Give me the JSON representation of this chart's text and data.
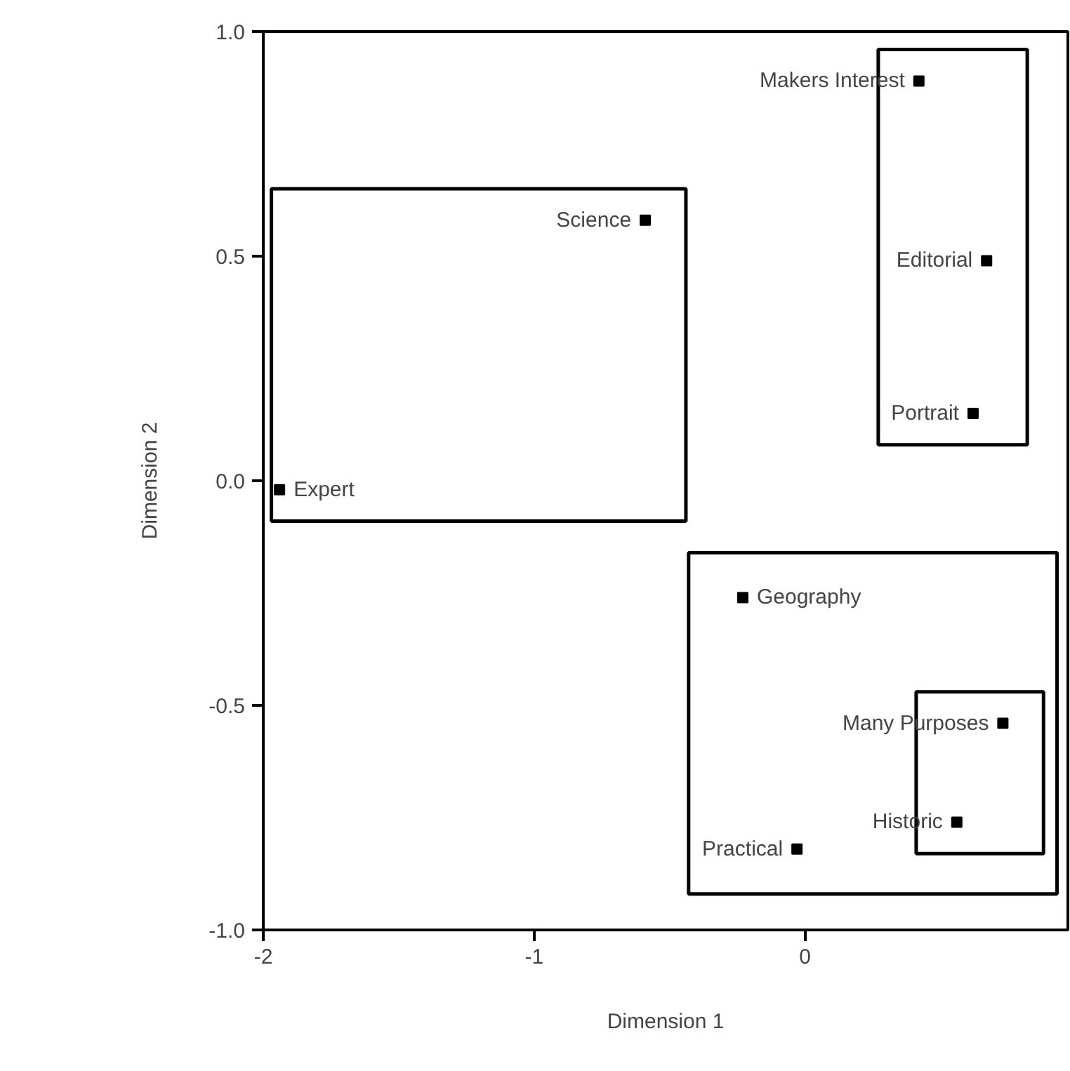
{
  "chart_data": {
    "type": "scatter",
    "xlabel": "Dimension 1",
    "ylabel": "Dimension 2",
    "xlim": [
      -2,
      0.97
    ],
    "ylim": [
      -1,
      1
    ],
    "xticks": [
      -2,
      -1,
      0
    ],
    "yticks": [
      {
        "value": -1,
        "label": "-1.0"
      },
      {
        "value": -0.5,
        "label": "-0.5"
      },
      {
        "value": 0,
        "label": "0.0"
      },
      {
        "value": 0.5,
        "label": "0.5"
      },
      {
        "value": 1,
        "label": "1.0"
      }
    ],
    "grid": false,
    "marker": "square",
    "series": [
      {
        "color": "#000000",
        "x": [
          -0.59,
          -1.94
        ],
        "values": [
          0.58,
          -0.02
        ]
      },
      {
        "color": "#000000",
        "x": [
          0.42,
          0.67,
          0.62
        ],
        "values": [
          0.89,
          0.49,
          0.15
        ]
      },
      {
        "color": "#000000",
        "x": [
          -0.23,
          -0.03
        ],
        "values": [
          -0.26,
          -0.82
        ]
      },
      {
        "color": "#000000",
        "x": [
          0.73,
          0.56
        ],
        "values": [
          -0.54,
          -0.76
        ]
      }
    ],
    "annotations": [
      {
        "text": "Science",
        "x": -0.59,
        "y": 0.58
      },
      {
        "text": "Expert",
        "x": -1.94,
        "y": -0.02
      },
      {
        "text": "Makers Interest",
        "x": 0.42,
        "y": 0.89
      },
      {
        "text": "Editorial",
        "x": 0.67,
        "y": 0.49
      },
      {
        "text": "Portrait",
        "x": 0.62,
        "y": 0.15
      },
      {
        "text": "Geography",
        "x": -0.23,
        "y": -0.26
      },
      {
        "text": "Practical",
        "x": -0.03,
        "y": -0.82
      },
      {
        "text": "Many Purposes",
        "x": 0.73,
        "y": -0.54
      },
      {
        "text": "Historic",
        "x": 0.56,
        "y": -0.76
      }
    ]
  }
}
